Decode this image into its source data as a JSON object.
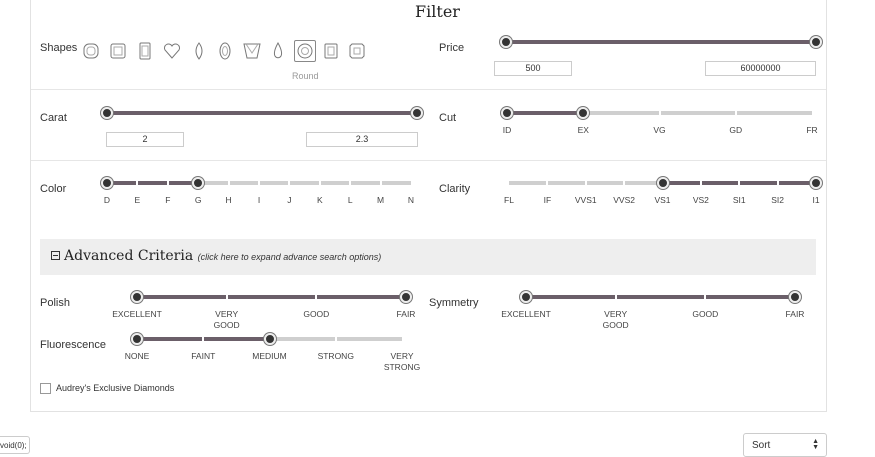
{
  "filter": {
    "title": "Filter",
    "shapes_label": "Shapes",
    "shapes": [
      {
        "icon": "cushion-icon"
      },
      {
        "icon": "princess-icon"
      },
      {
        "icon": "emerald-icon"
      },
      {
        "icon": "heart-icon"
      },
      {
        "icon": "marquise-icon"
      },
      {
        "icon": "oval-icon"
      },
      {
        "icon": "trillion-icon"
      },
      {
        "icon": "pear-icon"
      },
      {
        "icon": "round-icon"
      },
      {
        "icon": "asscher-icon"
      },
      {
        "icon": "radiant-icon"
      }
    ],
    "selected_shape": "Round",
    "price": {
      "label": "Price",
      "min": "500",
      "max": "60000000"
    },
    "carat": {
      "label": "Carat",
      "min": "2",
      "max": "2.3"
    },
    "cut": {
      "label": "Cut",
      "ticks": [
        "ID",
        "EX",
        "VG",
        "GD",
        "FR"
      ],
      "range": [
        "ID",
        "EX"
      ]
    },
    "color": {
      "label": "Color",
      "ticks": [
        "D",
        "E",
        "F",
        "G",
        "H",
        "I",
        "J",
        "K",
        "L",
        "M",
        "N"
      ],
      "range": [
        "D",
        "G"
      ]
    },
    "clarity": {
      "label": "Clarity",
      "ticks": [
        "FL",
        "IF",
        "VVS1",
        "VVS2",
        "VS1",
        "VS2",
        "SI1",
        "SI2",
        "I1"
      ],
      "range": [
        "VS1",
        "I1"
      ]
    },
    "advanced": {
      "title": "Advanced Criteria",
      "hint": "(click here to expand advance search options)",
      "polish": {
        "label": "Polish",
        "ticks": [
          "EXCELLENT",
          "VERY\nGOOD",
          "GOOD",
          "FAIR"
        ],
        "range": [
          "EXCELLENT",
          "FAIR"
        ]
      },
      "symmetry": {
        "label": "Symmetry",
        "ticks": [
          "EXCELLENT",
          "VERY\nGOOD",
          "GOOD",
          "FAIR"
        ],
        "range": [
          "EXCELLENT",
          "FAIR"
        ]
      },
      "fluorescence": {
        "label": "Fluorescence",
        "ticks": [
          "NONE",
          "FAINT",
          "MEDIUM",
          "STRONG",
          "VERY\nSTRONG"
        ],
        "range": [
          "NONE",
          "MEDIUM"
        ]
      },
      "exclusive_label": "Audrey's Exclusive Diamonds"
    }
  },
  "footer": {
    "void_text": "void(0);",
    "sort_label": "Sort",
    "sort_arrows": "▲\n▼"
  },
  "colors": {
    "accent": "#6b5f69",
    "track": "#cfcfcf",
    "handle": "#333333"
  }
}
